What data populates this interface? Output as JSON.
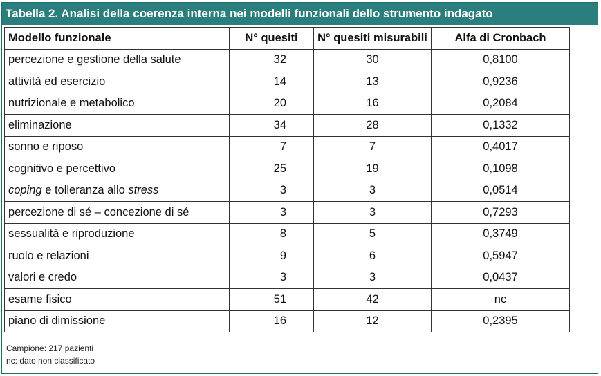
{
  "title": "Tabella 2. Analisi della coerenza interna nei modelli funzionali dello strumento indagato",
  "columns": [
    "Modello funzionale",
    "N° quesiti",
    "N° quesiti misurabili",
    "Alfa di Cronbach"
  ],
  "rows": [
    {
      "model": "percezione e gestione della salute",
      "quesiti": "32",
      "misurabili": "30",
      "alfa": "0,8100"
    },
    {
      "model": "attività ed esercizio",
      "quesiti": "14",
      "misurabili": "13",
      "alfa": "0,9236"
    },
    {
      "model": "nutrizionale e metabolico",
      "quesiti": "20",
      "misurabili": "16",
      "alfa": "0,2084"
    },
    {
      "model": "eliminazione",
      "quesiti": "34",
      "misurabili": "28",
      "alfa": "0,1332"
    },
    {
      "model": "sonno e riposo",
      "quesiti": "7",
      "misurabili": "7",
      "alfa": "0,4017"
    },
    {
      "model": "cognitivo e percettivo",
      "quesiti": "25",
      "misurabili": "19",
      "alfa": "0,1098"
    },
    {
      "model_parts": [
        "coping",
        " e tolleranza allo ",
        "stress"
      ],
      "quesiti": "3",
      "misurabili": "3",
      "alfa": "0,0514"
    },
    {
      "model": "percezione di sé – concezione di sé",
      "quesiti": "3",
      "misurabili": "3",
      "alfa": "0,7293"
    },
    {
      "model": "sessualità e riproduzione",
      "quesiti": "8",
      "misurabili": "5",
      "alfa": "0,3749"
    },
    {
      "model": "ruolo e relazioni",
      "quesiti": "9",
      "misurabili": "6",
      "alfa": "0,5947"
    },
    {
      "model": "valori e credo",
      "quesiti": "3",
      "misurabili": "3",
      "alfa": "0,0437"
    },
    {
      "model": "esame fisico",
      "quesiti": "51",
      "misurabili": "42",
      "alfa": "nc"
    },
    {
      "model": "piano di dimissione",
      "quesiti": "16",
      "misurabili": "12",
      "alfa": "0,2395"
    }
  ],
  "notes": [
    "Campione: 217 pazienti",
    "nc: dato non classificato"
  ],
  "colors": {
    "title_bg": "#2a7f7e",
    "title_text": "#ffffff",
    "border": "#333333"
  }
}
